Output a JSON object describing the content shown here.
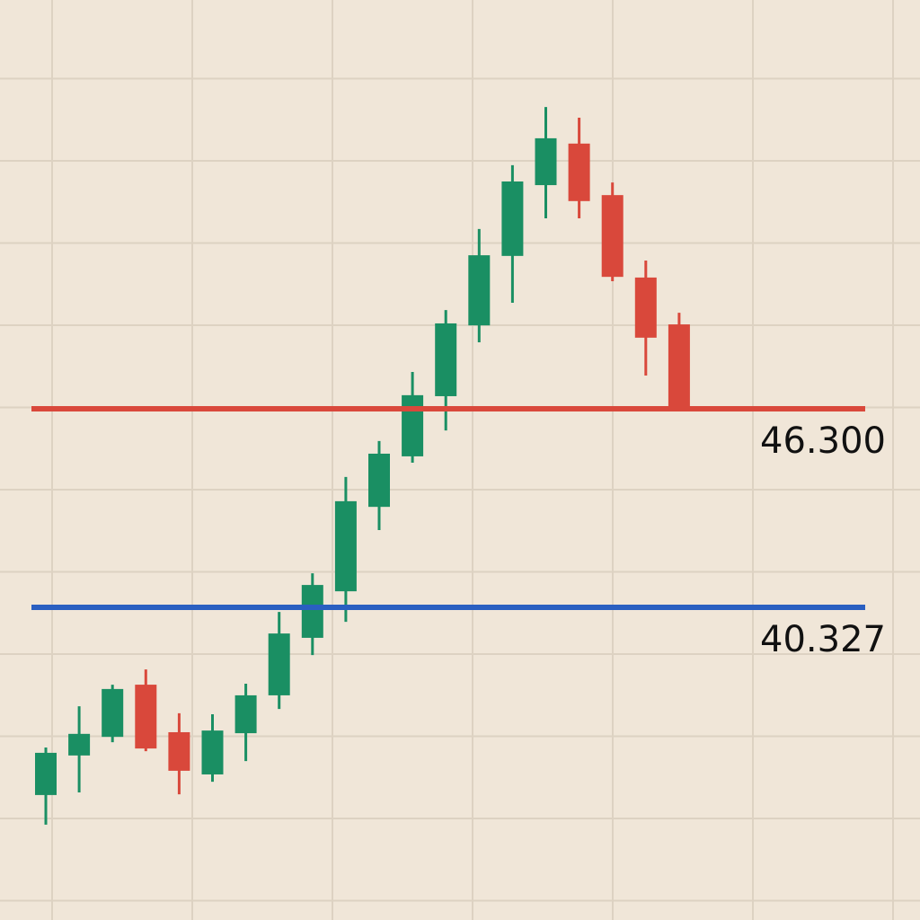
{
  "chart_data": {
    "type": "candlestick",
    "ylim": [
      30.92,
      58.6
    ],
    "up_color": "#1a8f63",
    "down_color": "#d9483b",
    "candles": [
      {
        "open": 34.68,
        "high": 36.11,
        "low": 33.79,
        "close": 35.95
      },
      {
        "open": 35.87,
        "high": 37.35,
        "low": 34.76,
        "close": 36.52
      },
      {
        "open": 36.43,
        "high": 38.0,
        "low": 36.27,
        "close": 37.87
      },
      {
        "open": 38.0,
        "high": 38.46,
        "low": 36.0,
        "close": 36.08
      },
      {
        "open": 36.57,
        "high": 37.14,
        "low": 34.7,
        "close": 35.41
      },
      {
        "open": 35.3,
        "high": 37.11,
        "low": 35.08,
        "close": 36.62
      },
      {
        "open": 36.54,
        "high": 38.03,
        "low": 35.7,
        "close": 37.68
      },
      {
        "open": 37.68,
        "high": 40.19,
        "low": 37.27,
        "close": 39.54
      },
      {
        "open": 39.41,
        "high": 41.35,
        "low": 38.89,
        "close": 41.0
      },
      {
        "open": 40.81,
        "high": 44.25,
        "low": 39.89,
        "close": 43.52
      },
      {
        "open": 43.35,
        "high": 45.33,
        "low": 42.65,
        "close": 44.95
      },
      {
        "open": 44.87,
        "high": 47.41,
        "low": 44.68,
        "close": 46.71
      },
      {
        "open": 46.68,
        "high": 49.27,
        "low": 45.65,
        "close": 48.87
      },
      {
        "open": 48.81,
        "high": 51.71,
        "low": 48.3,
        "close": 50.92
      },
      {
        "open": 50.9,
        "high": 53.63,
        "low": 49.49,
        "close": 53.14
      },
      {
        "open": 53.03,
        "high": 55.38,
        "low": 52.03,
        "close": 54.44
      },
      {
        "open": 54.28,
        "high": 55.06,
        "low": 52.03,
        "close": 52.55
      },
      {
        "open": 52.73,
        "high": 53.11,
        "low": 50.14,
        "close": 50.27
      },
      {
        "open": 50.25,
        "high": 50.76,
        "low": 47.3,
        "close": 48.44
      },
      {
        "open": 48.84,
        "high": 49.19,
        "low": 46.3,
        "close": 46.3
      }
    ],
    "levels": [
      {
        "value": 46.3,
        "label": "46.300",
        "color": "#d9483b"
      },
      {
        "value": 40.327,
        "label": "40.327",
        "color": "#2a5fc1"
      }
    ]
  }
}
